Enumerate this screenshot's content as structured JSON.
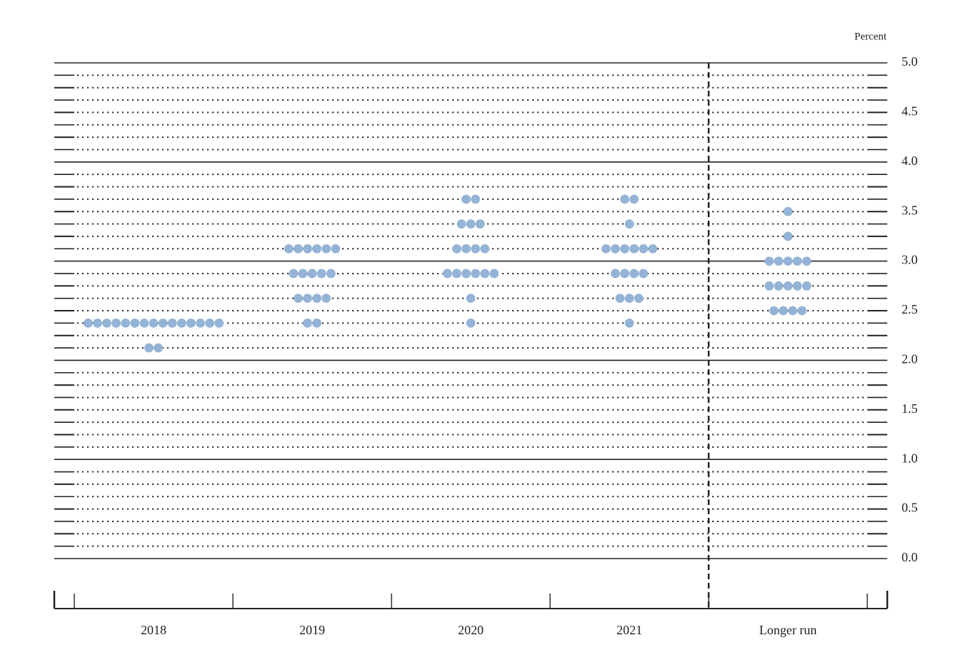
{
  "chart_data": {
    "type": "dot",
    "y_unit": "Percent",
    "categories": [
      "2018",
      "2019",
      "2020",
      "2021",
      "Longer run"
    ],
    "dots": [
      [
        {
          "y": 2.375,
          "n": 15
        },
        {
          "y": 2.125,
          "n": 2
        }
      ],
      [
        {
          "y": 3.125,
          "n": 6
        },
        {
          "y": 2.875,
          "n": 5
        },
        {
          "y": 2.625,
          "n": 4
        },
        {
          "y": 2.375,
          "n": 2
        }
      ],
      [
        {
          "y": 3.625,
          "n": 2
        },
        {
          "y": 3.375,
          "n": 3
        },
        {
          "y": 3.125,
          "n": 4
        },
        {
          "y": 2.875,
          "n": 6
        },
        {
          "y": 2.625,
          "n": 1
        },
        {
          "y": 2.375,
          "n": 1
        }
      ],
      [
        {
          "y": 3.625,
          "n": 2
        },
        {
          "y": 3.375,
          "n": 1
        },
        {
          "y": 3.125,
          "n": 6
        },
        {
          "y": 2.875,
          "n": 4
        },
        {
          "y": 2.625,
          "n": 3
        },
        {
          "y": 2.375,
          "n": 1
        }
      ],
      [
        {
          "y": 3.5,
          "n": 1
        },
        {
          "y": 3.25,
          "n": 1
        },
        {
          "y": 3.0,
          "n": 5
        },
        {
          "y": 2.75,
          "n": 5
        },
        {
          "y": 2.5,
          "n": 4
        }
      ]
    ],
    "color": "#94b3d6",
    "ylim": [
      0,
      5
    ],
    "yticks": [
      {
        "value": 0,
        "label": "0.0"
      },
      {
        "value": 0.5,
        "label": "0.5"
      },
      {
        "value": 1,
        "label": "1.0"
      },
      {
        "value": 1.5,
        "label": "1.5"
      },
      {
        "value": 2,
        "label": "2.0"
      },
      {
        "value": 2.5,
        "label": "2.5"
      },
      {
        "value": 3,
        "label": "3.0"
      },
      {
        "value": 3.5,
        "label": "3.5"
      },
      {
        "value": 4,
        "label": "4.0"
      },
      {
        "value": 4.5,
        "label": "4.5"
      },
      {
        "value": 5,
        "label": "5.0"
      }
    ],
    "ygrid": [
      0,
      0.125,
      0.25,
      0.375,
      0.5,
      0.625,
      0.75,
      0.875,
      1,
      1.125,
      1.25,
      1.375,
      1.5,
      1.625,
      1.75,
      1.875,
      2,
      2.125,
      2.25,
      2.375,
      2.5,
      2.625,
      2.75,
      2.875,
      3,
      3.125,
      3.25,
      3.375,
      3.5,
      3.625,
      3.75,
      3.875,
      4,
      4.125,
      4.25,
      4.375,
      4.5,
      4.625,
      4.75,
      4.875,
      5
    ]
  }
}
